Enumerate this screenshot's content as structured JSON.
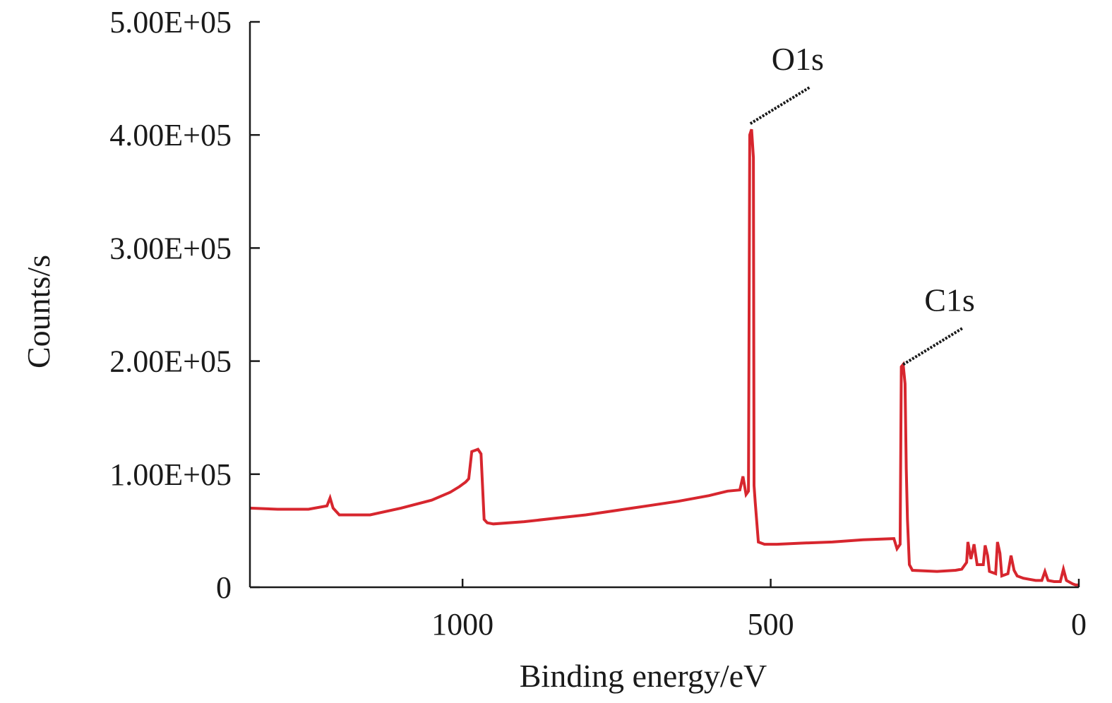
{
  "chart_data": {
    "type": "line",
    "xlabel": "Binding energy/eV",
    "ylabel": "Counts/s",
    "xlim": [
      1345,
      0
    ],
    "ylim": [
      0,
      500000
    ],
    "x_reversed": true,
    "grid": false,
    "line_color": "#d7262e",
    "x_ticks": [
      {
        "value": 1000,
        "label": "1000"
      },
      {
        "value": 500,
        "label": "500"
      },
      {
        "value": 0,
        "label": "0"
      }
    ],
    "y_ticks": [
      {
        "value": 0,
        "label": "0"
      },
      {
        "value": 100000,
        "label": "1.00E+05"
      },
      {
        "value": 200000,
        "label": "2.00E+05"
      },
      {
        "value": 300000,
        "label": "3.00E+05"
      },
      {
        "value": 400000,
        "label": "4.00E+05"
      },
      {
        "value": 500000,
        "label": "5.00E+05"
      }
    ],
    "annotations": [
      {
        "text": "O1s",
        "x": 533,
        "y": 410000
      },
      {
        "text": "C1s",
        "x": 285,
        "y": 197000
      }
    ],
    "series": [
      {
        "points": [
          [
            1345,
            70000
          ],
          [
            1300,
            69000
          ],
          [
            1250,
            69000
          ],
          [
            1220,
            72000
          ],
          [
            1215,
            79000
          ],
          [
            1210,
            70000
          ],
          [
            1200,
            64000
          ],
          [
            1150,
            64000
          ],
          [
            1100,
            70000
          ],
          [
            1050,
            77000
          ],
          [
            1020,
            84000
          ],
          [
            1005,
            89000
          ],
          [
            1000,
            91000
          ],
          [
            995,
            93000
          ],
          [
            990,
            96000
          ],
          [
            985,
            120000
          ],
          [
            975,
            122000
          ],
          [
            970,
            118000
          ],
          [
            965,
            60000
          ],
          [
            960,
            57000
          ],
          [
            950,
            56000
          ],
          [
            900,
            58000
          ],
          [
            850,
            61000
          ],
          [
            800,
            64000
          ],
          [
            750,
            68000
          ],
          [
            700,
            72000
          ],
          [
            650,
            76000
          ],
          [
            600,
            81000
          ],
          [
            570,
            85000
          ],
          [
            550,
            86000
          ],
          [
            545,
            98000
          ],
          [
            540,
            82000
          ],
          [
            536,
            85000
          ],
          [
            534,
            400000
          ],
          [
            531,
            405000
          ],
          [
            528,
            380000
          ],
          [
            527,
            90000
          ],
          [
            525,
            75000
          ],
          [
            520,
            40000
          ],
          [
            510,
            38000
          ],
          [
            490,
            38000
          ],
          [
            450,
            39000
          ],
          [
            400,
            40000
          ],
          [
            350,
            42000
          ],
          [
            300,
            43000
          ],
          [
            295,
            34000
          ],
          [
            290,
            38000
          ],
          [
            288,
            195000
          ],
          [
            285,
            197000
          ],
          [
            282,
            180000
          ],
          [
            280,
            105000
          ],
          [
            278,
            60000
          ],
          [
            275,
            20000
          ],
          [
            270,
            15000
          ],
          [
            230,
            14000
          ],
          [
            200,
            15000
          ],
          [
            190,
            16000
          ],
          [
            182,
            22000
          ],
          [
            180,
            40000
          ],
          [
            175,
            25000
          ],
          [
            170,
            38000
          ],
          [
            165,
            20000
          ],
          [
            155,
            20000
          ],
          [
            152,
            37000
          ],
          [
            148,
            28000
          ],
          [
            145,
            14000
          ],
          [
            135,
            12000
          ],
          [
            132,
            40000
          ],
          [
            128,
            30000
          ],
          [
            125,
            10000
          ],
          [
            115,
            12000
          ],
          [
            110,
            28000
          ],
          [
            105,
            15000
          ],
          [
            100,
            10000
          ],
          [
            90,
            8000
          ],
          [
            80,
            7000
          ],
          [
            70,
            6000
          ],
          [
            60,
            6000
          ],
          [
            55,
            14000
          ],
          [
            50,
            6000
          ],
          [
            40,
            5000
          ],
          [
            30,
            5000
          ],
          [
            25,
            16000
          ],
          [
            20,
            6000
          ],
          [
            10,
            3000
          ],
          [
            5,
            2000
          ],
          [
            0,
            2000
          ]
        ]
      }
    ]
  }
}
